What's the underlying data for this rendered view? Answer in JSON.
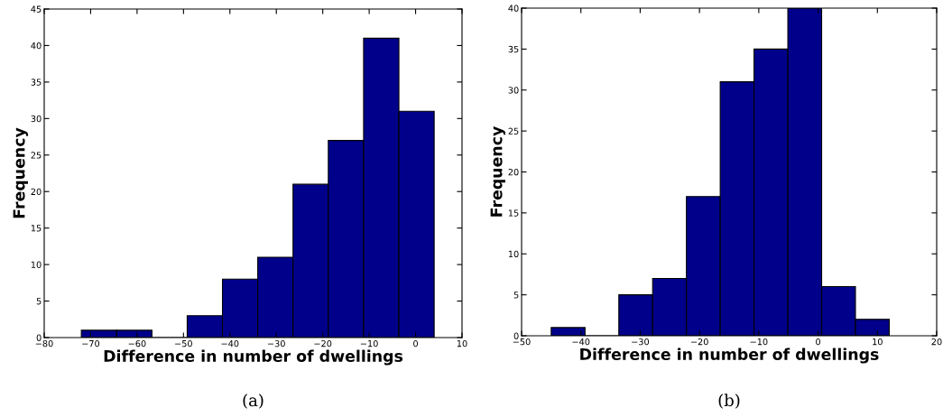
{
  "chart_data": [
    {
      "type": "histogram",
      "xlabel": "Difference in number of dwellings",
      "ylabel": "Frequency",
      "color": "#00008b",
      "bins": [
        -72,
        -64.4,
        -56.8,
        -49.2,
        -41.6,
        -34,
        -26.4,
        -18.8,
        -11.2,
        -3.6,
        4
      ],
      "values": [
        1,
        1,
        0,
        3,
        8,
        11,
        21,
        27,
        41,
        31
      ],
      "xlim": [
        -80,
        10
      ],
      "xticks": [
        -80,
        -70,
        -60,
        -50,
        -40,
        -30,
        -20,
        -10,
        0,
        10
      ],
      "ylim": [
        0,
        45
      ],
      "yticks": [
        0,
        5,
        10,
        15,
        20,
        25,
        30,
        35,
        40,
        45
      ],
      "grid": false,
      "annotations": [
        "(a)"
      ]
    },
    {
      "type": "histogram",
      "xlabel": "Difference in number of dwellings",
      "ylabel": "Frequency",
      "color": "#00008b",
      "bins": [
        -45,
        -39.3,
        -33.6,
        -27.9,
        -22.2,
        -16.5,
        -10.8,
        -5.1,
        0.6,
        6.3,
        12
      ],
      "values": [
        1,
        0,
        5,
        7,
        17,
        31,
        35,
        40,
        6,
        2
      ],
      "xlim": [
        -50,
        20
      ],
      "xticks": [
        -50,
        -40,
        -30,
        -20,
        -10,
        0,
        10,
        20
      ],
      "ylim": [
        0,
        40
      ],
      "yticks": [
        0,
        5,
        10,
        15,
        20,
        25,
        30,
        35,
        40
      ],
      "grid": false,
      "annotations": [
        "(b)"
      ]
    }
  ]
}
